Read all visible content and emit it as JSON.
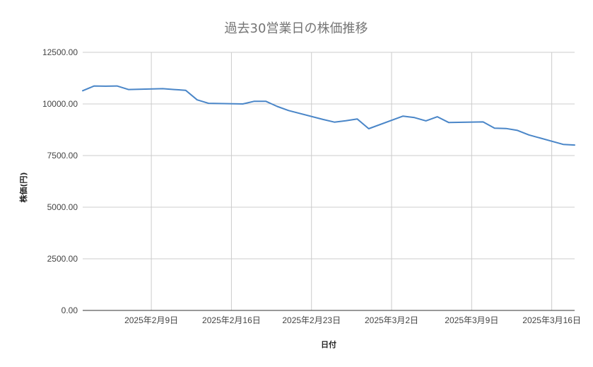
{
  "chart_data": {
    "type": "line",
    "title": "過去30営業日の株価推移",
    "xlabel": "日付",
    "ylabel": "株価(円)",
    "ylim": [
      0,
      12500
    ],
    "y_ticks": [
      "0.00",
      "2500.00",
      "5000.00",
      "7500.00",
      "10000.00",
      "12500.00"
    ],
    "x_range": [
      "2025-02-03",
      "2025-03-18"
    ],
    "x_ticks": [
      {
        "date": "2025-02-09",
        "label": "2025年2月9日"
      },
      {
        "date": "2025-02-16",
        "label": "2025年2月16日"
      },
      {
        "date": "2025-02-23",
        "label": "2025年2月23日"
      },
      {
        "date": "2025-03-02",
        "label": "2025年3月2日"
      },
      {
        "date": "2025-03-09",
        "label": "2025年3月9日"
      },
      {
        "date": "2025-03-16",
        "label": "2025年3月16日"
      }
    ],
    "grid": true,
    "line_color": "#4a86c8",
    "series": [
      {
        "points": [
          {
            "x": "2025-02-03",
            "y": 10640
          },
          {
            "x": "2025-02-04",
            "y": 10870
          },
          {
            "x": "2025-02-05",
            "y": 10860
          },
          {
            "x": "2025-02-06",
            "y": 10870
          },
          {
            "x": "2025-02-07",
            "y": 10700
          },
          {
            "x": "2025-02-10",
            "y": 10740
          },
          {
            "x": "2025-02-11",
            "y": 10700
          },
          {
            "x": "2025-02-12",
            "y": 10660
          },
          {
            "x": "2025-02-13",
            "y": 10200
          },
          {
            "x": "2025-02-14",
            "y": 10030
          },
          {
            "x": "2025-02-17",
            "y": 10000
          },
          {
            "x": "2025-02-18",
            "y": 10130
          },
          {
            "x": "2025-02-19",
            "y": 10130
          },
          {
            "x": "2025-02-20",
            "y": 9880
          },
          {
            "x": "2025-02-21",
            "y": 9680
          },
          {
            "x": "2025-02-24",
            "y": 9250
          },
          {
            "x": "2025-02-25",
            "y": 9120
          },
          {
            "x": "2025-02-26",
            "y": 9190
          },
          {
            "x": "2025-02-27",
            "y": 9270
          },
          {
            "x": "2025-02-28",
            "y": 8800
          },
          {
            "x": "2025-03-03",
            "y": 9410
          },
          {
            "x": "2025-03-04",
            "y": 9340
          },
          {
            "x": "2025-03-05",
            "y": 9180
          },
          {
            "x": "2025-03-06",
            "y": 9380
          },
          {
            "x": "2025-03-07",
            "y": 9100
          },
          {
            "x": "2025-03-10",
            "y": 9130
          },
          {
            "x": "2025-03-11",
            "y": 8830
          },
          {
            "x": "2025-03-12",
            "y": 8810
          },
          {
            "x": "2025-03-13",
            "y": 8720
          },
          {
            "x": "2025-03-14",
            "y": 8500
          },
          {
            "x": "2025-03-17",
            "y": 8040
          },
          {
            "x": "2025-03-18",
            "y": 8010
          }
        ]
      }
    ]
  }
}
